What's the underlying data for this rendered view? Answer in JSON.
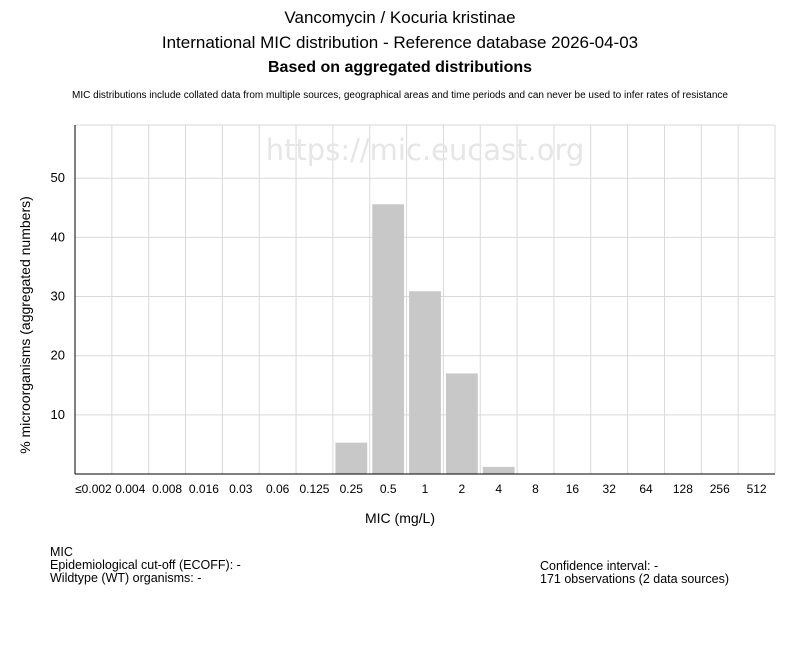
{
  "header": {
    "title_line1": "Vancomycin / Kocuria kristinae",
    "title_line2": "International MIC distribution - Reference database 2026-04-03",
    "title_line3": "Based on aggregated distributions",
    "disclaimer": "MIC distributions include collated data from multiple sources, geographical areas and time periods and can never be used to infer rates of resistance"
  },
  "watermark": "https://mic.eucast.org",
  "chart_data": {
    "type": "bar",
    "categories": [
      "≤0.002",
      "0.004",
      "0.008",
      "0.016",
      "0.03",
      "0.06",
      "0.125",
      "0.25",
      "0.5",
      "1",
      "2",
      "4",
      "8",
      "16",
      "32",
      "64",
      "128",
      "256",
      "512"
    ],
    "values": [
      0,
      0,
      0,
      0,
      0,
      0,
      0,
      5.3,
      45.6,
      30.9,
      17.0,
      1.2,
      0,
      0,
      0,
      0,
      0,
      0,
      0
    ],
    "xlabel": "MIC (mg/L)",
    "ylabel": "% microorganisms (aggregated numbers)",
    "ylim": [
      0,
      59
    ],
    "yticks": [
      10,
      20,
      30,
      40,
      50
    ],
    "grid": true,
    "bar_color": "#c8c8c8",
    "grid_color": "#d9d9d9"
  },
  "footer": {
    "mic_label": "MIC",
    "ecoff": "Epidemiological cut-off (ECOFF): -",
    "wildtype": "Wildtype (WT) organisms:  -",
    "confidence": "Confidence interval: -",
    "observations": "171 observations (2 data sources)"
  }
}
